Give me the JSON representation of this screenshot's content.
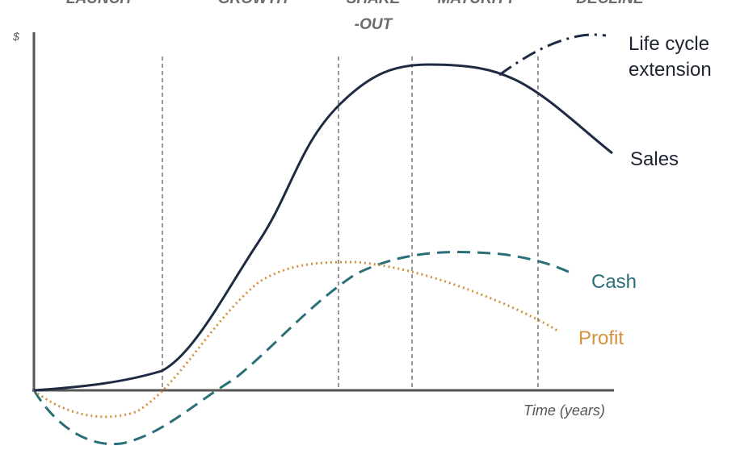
{
  "stages": {
    "launch": "LAUNCH",
    "growth": "GROWTH",
    "shakeout": [
      "SHAKE",
      "-OUT"
    ],
    "maturity": "MATURITY",
    "decline": "DECLINE"
  },
  "axes": {
    "y_label": "$",
    "x_label": "Time (years)"
  },
  "curves": {
    "extension": [
      "Life cycle",
      "extension"
    ],
    "sales": "Sales",
    "cash": "Cash",
    "profit": "Profit"
  }
}
